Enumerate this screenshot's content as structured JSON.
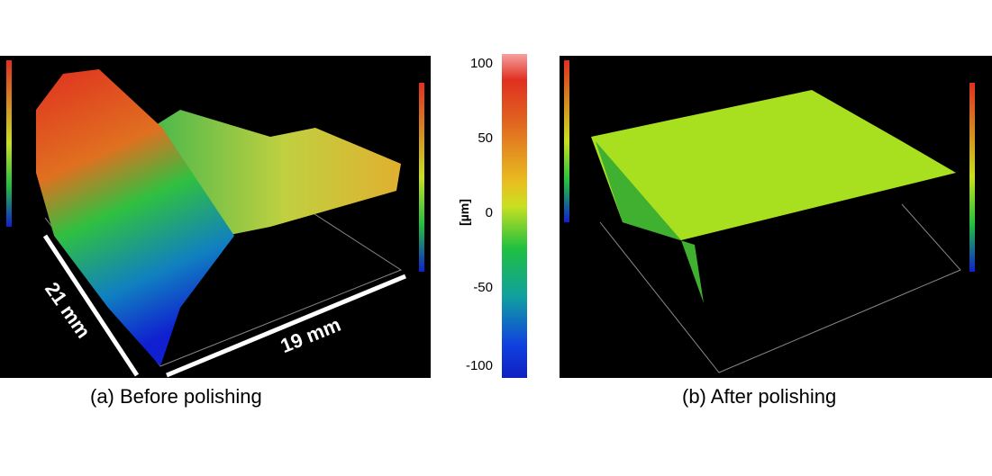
{
  "panel_a": {
    "caption": "(a)  Before polishing",
    "dim_width": "21 mm",
    "dim_length": "19 mm"
  },
  "panel_b": {
    "caption": "(b) After polishing"
  },
  "colorbar": {
    "unit": "[µm]",
    "ticks": [
      "100",
      "50",
      "0",
      "-50",
      "-100"
    ],
    "range": [
      -100,
      100
    ]
  },
  "colors": {
    "high": "#e03020",
    "mid": "#c8e020",
    "low": "#1020c0"
  }
}
